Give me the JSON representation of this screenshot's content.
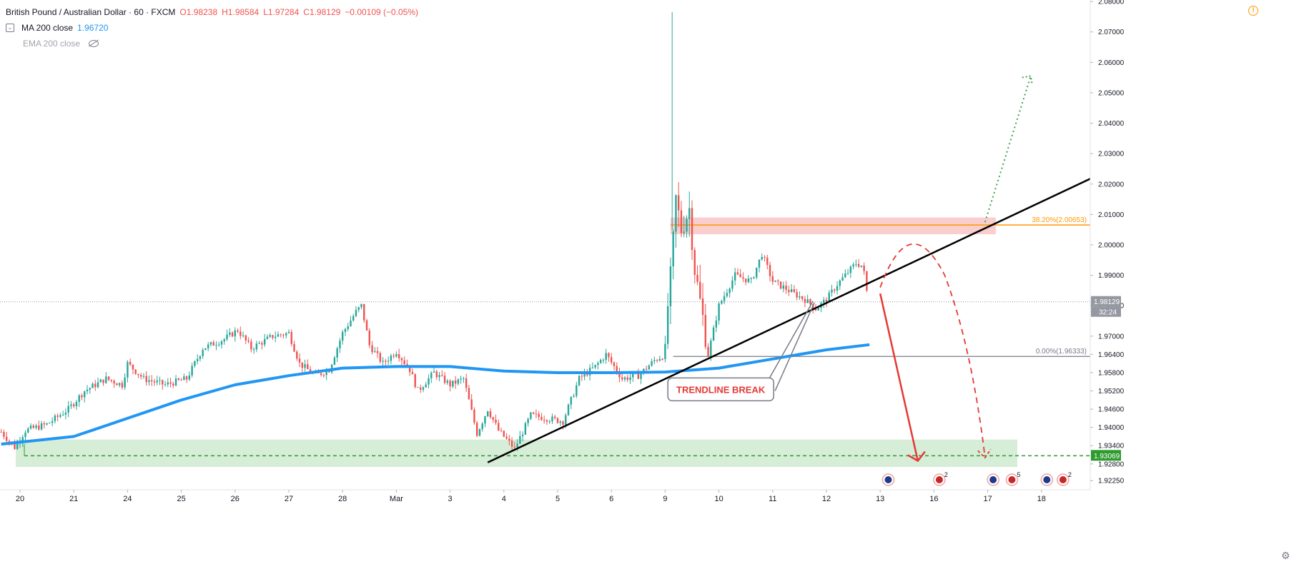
{
  "legend": {
    "symbol": "British Pound / Australian Dollar · 60 · FXCM",
    "open": "O1.98238",
    "high": "H1.98584",
    "low": "L1.97284",
    "close": "C1.98129",
    "change": "−0.00109 (−0.05%)",
    "ma_label": "MA 200 close",
    "ma_value": "1.96720",
    "ema_label": "EMA 200 close"
  },
  "colors": {
    "up": "#26a69a",
    "down": "#ef5350",
    "ma": "#2196f3",
    "trendline": "#000000",
    "fib_382": "#ff9800",
    "fib_0": "#787b86",
    "resistance_zone": "#f8c6c4",
    "support_zone": "#cfead0",
    "support_line": "#2e9b2e",
    "bear_arrow": "#e53935",
    "bull_arrow": "#43a047"
  },
  "chart_data": {
    "type": "candlestick",
    "y_axis": {
      "range": [
        1.9195,
        2.0805
      ],
      "ticks": [
        "2.08000",
        "2.07000",
        "2.06000",
        "2.05000",
        "2.04000",
        "2.03000",
        "2.02000",
        "2.01000",
        "2.00000",
        "1.99000",
        "1.98000",
        "1.97000",
        "1.96400",
        "1.95800",
        "1.95200",
        "1.94600",
        "1.94000",
        "1.93400",
        "1.92800",
        "1.92250"
      ]
    },
    "x_axis": {
      "ticks": [
        {
          "label": "20",
          "pos": 0.0
        },
        {
          "label": "21",
          "pos": 1.0
        },
        {
          "label": "24",
          "pos": 2.0
        },
        {
          "label": "25",
          "pos": 3.0
        },
        {
          "label": "26",
          "pos": 4.0
        },
        {
          "label": "27",
          "pos": 5.0
        },
        {
          "label": "28",
          "pos": 6.0
        },
        {
          "label": "Mar",
          "pos": 7.0
        },
        {
          "label": "3",
          "pos": 8.0
        },
        {
          "label": "4",
          "pos": 9.0
        },
        {
          "label": "5",
          "pos": 10.0
        },
        {
          "label": "6",
          "pos": 11.0
        },
        {
          "label": "9",
          "pos": 12.0
        },
        {
          "label": "10",
          "pos": 13.0
        },
        {
          "label": "11",
          "pos": 14.0
        },
        {
          "label": "12",
          "pos": 15.0
        },
        {
          "label": "13",
          "pos": 16.0
        },
        {
          "label": "16",
          "pos": 17.0
        },
        {
          "label": "17",
          "pos": 18.0
        },
        {
          "label": "18",
          "pos": 19.0
        }
      ]
    },
    "price_path": [
      [
        -0.35,
        1.9385
      ],
      [
        -0.1,
        1.9335
      ],
      [
        0.1,
        1.939
      ],
      [
        0.5,
        1.941
      ],
      [
        0.9,
        1.946
      ],
      [
        1.2,
        1.952
      ],
      [
        1.6,
        1.956
      ],
      [
        1.9,
        1.954
      ],
      [
        2.0,
        1.961
      ],
      [
        2.3,
        1.956
      ],
      [
        2.7,
        1.954
      ],
      [
        3.1,
        1.956
      ],
      [
        3.4,
        1.966
      ],
      [
        3.8,
        1.969
      ],
      [
        4.05,
        1.972
      ],
      [
        4.3,
        1.966
      ],
      [
        4.7,
        1.97
      ],
      [
        5.0,
        1.971
      ],
      [
        5.2,
        1.961
      ],
      [
        5.5,
        1.957
      ],
      [
        5.75,
        1.959
      ],
      [
        6.0,
        1.971
      ],
      [
        6.25,
        1.978
      ],
      [
        6.35,
        1.98
      ],
      [
        6.5,
        1.967
      ],
      [
        6.75,
        1.961
      ],
      [
        7.0,
        1.965
      ],
      [
        7.25,
        1.959
      ],
      [
        7.4,
        1.952
      ],
      [
        7.7,
        1.958
      ],
      [
        8.0,
        1.954
      ],
      [
        8.25,
        1.956
      ],
      [
        8.5,
        1.938
      ],
      [
        8.7,
        1.946
      ],
      [
        8.9,
        1.939
      ],
      [
        9.2,
        1.933
      ],
      [
        9.5,
        1.944
      ],
      [
        9.8,
        1.943
      ],
      [
        10.1,
        1.942
      ],
      [
        10.4,
        1.956
      ],
      [
        10.7,
        1.96
      ],
      [
        10.9,
        1.964
      ],
      [
        11.2,
        1.956
      ],
      [
        11.5,
        1.957
      ],
      [
        11.8,
        1.962
      ],
      [
        12.0,
        1.964
      ],
      [
        12.05,
        1.98
      ],
      [
        12.12,
        1.993
      ],
      [
        12.2,
        2.015
      ],
      [
        12.3,
        2.005
      ],
      [
        12.45,
        2.012
      ],
      [
        12.55,
        1.992
      ],
      [
        12.7,
        1.976
      ],
      [
        12.8,
        1.964
      ],
      [
        13.0,
        1.98
      ],
      [
        13.3,
        1.99
      ],
      [
        13.6,
        1.988
      ],
      [
        13.8,
        1.997
      ],
      [
        14.0,
        1.988
      ],
      [
        14.3,
        1.985
      ],
      [
        14.6,
        1.982
      ],
      [
        14.8,
        1.979
      ],
      [
        15.0,
        1.982
      ],
      [
        15.2,
        1.987
      ],
      [
        15.35,
        1.99
      ],
      [
        15.55,
        1.994
      ],
      [
        15.68,
        1.993
      ],
      [
        15.78,
        1.9812
      ]
    ],
    "price_high": 2.0765,
    "price_high_x": 12.13,
    "ma_200": [
      [
        -0.35,
        1.9345
      ],
      [
        1.0,
        1.937
      ],
      [
        2.0,
        1.943
      ],
      [
        3.0,
        1.949
      ],
      [
        4.0,
        1.954
      ],
      [
        5.0,
        1.957
      ],
      [
        6.0,
        1.9595
      ],
      [
        7.0,
        1.96
      ],
      [
        8.0,
        1.96
      ],
      [
        9.0,
        1.9585
      ],
      [
        10.0,
        1.958
      ],
      [
        11.0,
        1.958
      ],
      [
        12.0,
        1.9582
      ],
      [
        13.0,
        1.9595
      ],
      [
        14.0,
        1.9625
      ],
      [
        14.5,
        1.964
      ],
      [
        15.0,
        1.9655
      ],
      [
        15.8,
        1.9672
      ]
    ],
    "current_price": "1.98129",
    "countdown": "32:24",
    "support_price": "1.93069",
    "fib_382": {
      "label": "38.20%(2.00653)",
      "value": 2.00653
    },
    "fib_0": {
      "label": "0.00%(1.96333)",
      "value": 1.96333
    },
    "resistance_zone": {
      "x0": 12.1,
      "x1": 18.15,
      "y0": 2.0035,
      "y1": 2.009
    },
    "support_zone": {
      "x0": -0.08,
      "x1": 18.55,
      "y0": 1.927,
      "y1": 1.936
    },
    "support_line": {
      "x0": 0.08,
      "value": 1.93069
    },
    "trendline": [
      [
        8.7,
        1.9285
      ],
      [
        20.0,
        2.0225
      ]
    ],
    "annotation": {
      "text": "TRENDLINE BREAK",
      "x": 12.05,
      "y": 1.9525,
      "tip_x": 14.75,
      "tip_y": 1.9815
    },
    "bear_arrow": [
      [
        16.0,
        1.984
      ],
      [
        16.7,
        1.929
      ]
    ],
    "bull_dotted": [
      [
        17.95,
        2.0075
      ],
      [
        18.8,
        2.0555
      ]
    ],
    "dashed_curve": [
      [
        16.0,
        1.986
      ],
      [
        16.55,
        1.996
      ],
      [
        17.2,
        1.99
      ],
      [
        17.7,
        1.962
      ],
      [
        17.95,
        1.93
      ]
    ],
    "events": [
      {
        "x": 16.15,
        "badge": "aud",
        "count": ""
      },
      {
        "x": 17.1,
        "badge": "uk",
        "count": "2"
      },
      {
        "x": 18.1,
        "badge": "aud",
        "count": ""
      },
      {
        "x": 18.45,
        "badge": "uk",
        "count": "5"
      },
      {
        "x": 19.1,
        "badge": "aud",
        "count": ""
      },
      {
        "x": 19.4,
        "badge": "uk",
        "count": "2"
      }
    ]
  }
}
